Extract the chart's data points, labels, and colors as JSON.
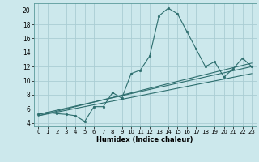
{
  "title": "",
  "xlabel": "Humidex (Indice chaleur)",
  "ylabel": "",
  "background_color": "#cce8ec",
  "grid_color": "#aacdd4",
  "line_color": "#2d6e6e",
  "xlim": [
    -0.5,
    23.5
  ],
  "ylim": [
    3.5,
    21.0
  ],
  "xticks": [
    0,
    1,
    2,
    3,
    4,
    5,
    6,
    7,
    8,
    9,
    10,
    11,
    12,
    13,
    14,
    15,
    16,
    17,
    18,
    19,
    20,
    21,
    22,
    23
  ],
  "yticks": [
    4,
    6,
    8,
    10,
    12,
    14,
    16,
    18,
    20
  ],
  "series1_x": [
    0,
    1,
    2,
    3,
    4,
    5,
    6,
    7,
    8,
    9,
    10,
    11,
    12,
    13,
    14,
    15,
    16,
    17,
    18,
    19,
    20,
    21,
    22,
    23
  ],
  "series1_y": [
    5.2,
    5.5,
    5.3,
    5.2,
    5.0,
    4.2,
    6.3,
    6.3,
    8.3,
    7.5,
    11.0,
    11.5,
    13.5,
    19.2,
    20.3,
    19.5,
    17.0,
    14.5,
    12.0,
    12.7,
    10.5,
    11.7,
    13.2,
    12.0
  ],
  "series2_x": [
    0,
    23
  ],
  "series2_y": [
    5.0,
    12.5
  ],
  "series3_x": [
    0,
    23
  ],
  "series3_y": [
    5.0,
    11.0
  ],
  "series4_x": [
    0,
    23
  ],
  "series4_y": [
    5.2,
    12.0
  ],
  "xlabel_fontsize": 6.0,
  "tick_fontsize": 5.0,
  "marker_size": 2.0,
  "line_width": 0.8
}
